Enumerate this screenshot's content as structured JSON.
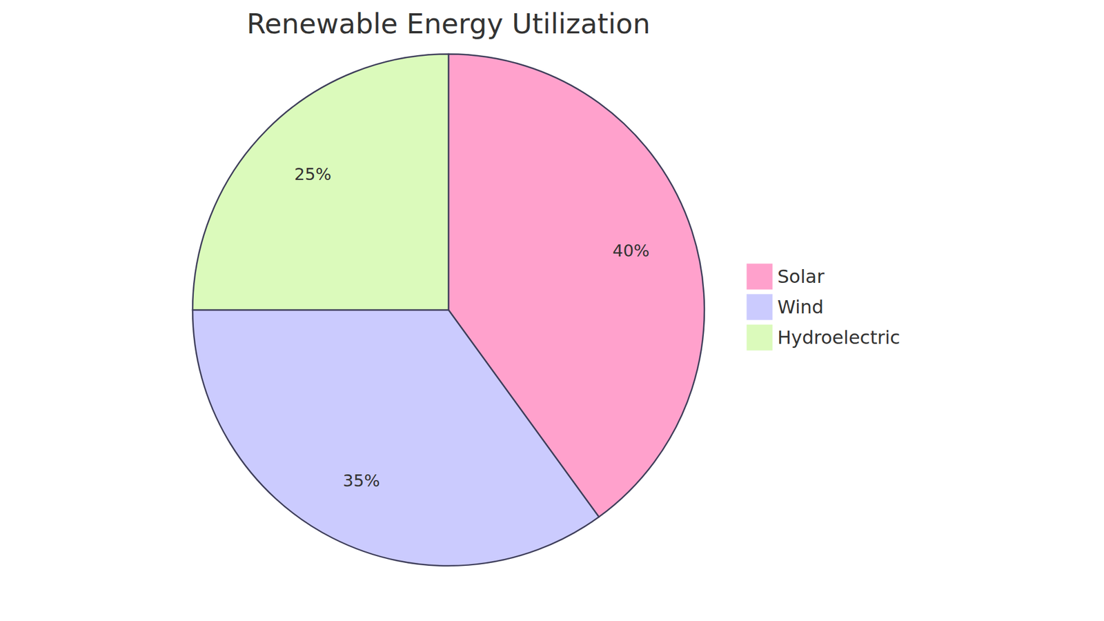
{
  "chart_data": {
    "type": "pie",
    "title": "Renewable Energy Utilization",
    "categories": [
      "Solar",
      "Wind",
      "Hydroelectric"
    ],
    "values": [
      40,
      35,
      25
    ],
    "value_labels": [
      "40%",
      "35%",
      "25%"
    ],
    "colors": [
      "#ffa1cc",
      "#cbcbfe",
      "#dbfabb"
    ],
    "data_labels": true,
    "legend": "right"
  }
}
